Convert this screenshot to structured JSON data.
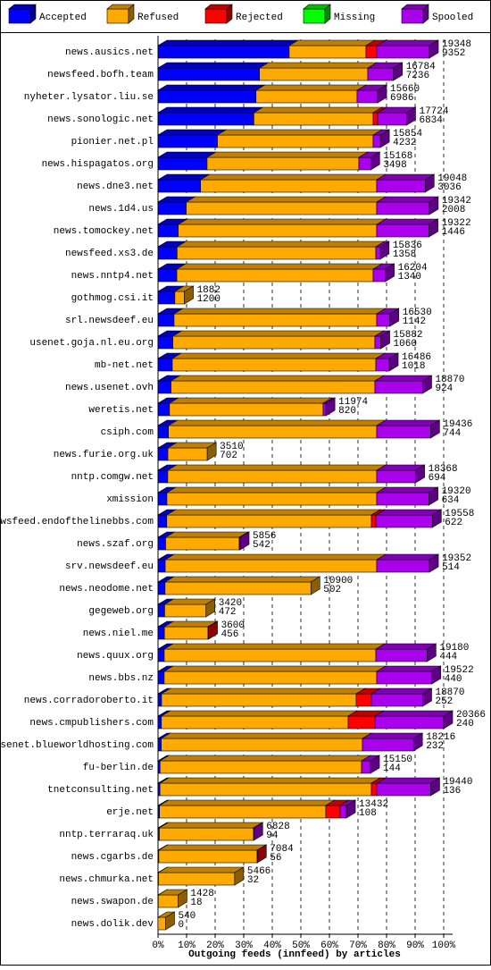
{
  "chart_data": {
    "type": "stacked-bar-3d",
    "orientation": "horizontal",
    "xlabel": "Outgoing feeds (innfeed) by articles",
    "categories": [
      "news.ausics.net",
      "newsfeed.bofh.team",
      "nyheter.lysator.liu.se",
      "news.sonologic.net",
      "pionier.net.pl",
      "news.hispagatos.org",
      "news.dne3.net",
      "news.1d4.us",
      "news.tomockey.net",
      "newsfeed.xs3.de",
      "news.nntp4.net",
      "gothmog.csi.it",
      "srl.newsdeef.eu",
      "usenet.goja.nl.eu.org",
      "mb-net.net",
      "news.usenet.ovh",
      "weretis.net",
      "csiph.com",
      "news.furie.org.uk",
      "nntp.comgw.net",
      "xmission",
      "newsfeed.endofthelinebbs.com",
      "news.szaf.org",
      "srv.newsdeef.eu",
      "news.neodome.net",
      "gegeweb.org",
      "news.niel.me",
      "news.quux.org",
      "news.bbs.nz",
      "news.corradoroberto.it",
      "news.cmpublishers.com",
      "usenet.blueworldhosting.com",
      "fu-berlin.de",
      "tnetconsulting.net",
      "erje.net",
      "nntp.terraraq.uk",
      "news.cgarbs.de",
      "news.chmurka.net",
      "news.swapon.de",
      "news.dolik.dev"
    ],
    "totals": [
      19348,
      16784,
      15660,
      17724,
      15854,
      15168,
      19048,
      19342,
      19322,
      15836,
      16204,
      1882,
      16530,
      15882,
      16486,
      18870,
      11974,
      19436,
      3510,
      18368,
      19320,
      19558,
      5856,
      19352,
      10900,
      3420,
      3600,
      19180,
      19522,
      18870,
      20366,
      18216,
      15150,
      19440,
      13432,
      6828,
      7084,
      5466,
      1428,
      540
    ],
    "series": [
      {
        "name": "Accepted",
        "color": "#0000ff",
        "values": [
          9352,
          7236,
          6986,
          6834,
          4232,
          3498,
          3036,
          2008,
          1446,
          1358,
          1340,
          1200,
          1142,
          1060,
          1018,
          924,
          820,
          744,
          702,
          694,
          634,
          622,
          542,
          514,
          502,
          472,
          456,
          444,
          440,
          252,
          240,
          232,
          144,
          136,
          108,
          94,
          56,
          32,
          18,
          0
        ]
      },
      {
        "name": "Refused",
        "color": "#ffaa00",
        "values": [
          5477,
          7720,
          7206,
          8504,
          11106,
          10822,
          12557,
          13585,
          14147,
          14171,
          13998,
          682,
          14451,
          14405,
          14511,
          14541,
          10954,
          14849,
          2808,
          14899,
          14959,
          14589,
          5249,
          15079,
          10398,
          2948,
          3108,
          15085,
          15153,
          13877,
          13316,
          14342,
          14367,
          15075,
          11857,
          6715,
          7008,
          5434,
          1410,
          540
        ]
      },
      {
        "name": "Rejected",
        "color": "#ff0000",
        "values": [
          764,
          0,
          0,
          318,
          0,
          0,
          0,
          0,
          0,
          0,
          0,
          0,
          0,
          0,
          0,
          0,
          0,
          0,
          0,
          0,
          0,
          318,
          0,
          0,
          0,
          0,
          36,
          0,
          0,
          1082,
          1909,
          0,
          0,
          382,
          1018,
          0,
          20,
          0,
          0,
          0
        ]
      },
      {
        "name": "Missing",
        "color": "#00ff00",
        "values": [
          0,
          0,
          0,
          0,
          0,
          0,
          0,
          0,
          0,
          0,
          0,
          0,
          0,
          0,
          0,
          0,
          0,
          0,
          0,
          0,
          0,
          0,
          0,
          0,
          0,
          0,
          0,
          0,
          0,
          0,
          0,
          0,
          0,
          0,
          0,
          0,
          0,
          0,
          0,
          0
        ]
      },
      {
        "name": "Spooled",
        "color": "#aa00ee",
        "values": [
          3755,
          1828,
          1468,
          2068,
          516,
          848,
          3455,
          3749,
          3729,
          307,
          866,
          0,
          937,
          417,
          957,
          3405,
          200,
          3843,
          0,
          2775,
          3727,
          4029,
          65,
          3759,
          0,
          0,
          0,
          3651,
          3929,
          3659,
          4901,
          3642,
          639,
          3847,
          449,
          19,
          0,
          0,
          0,
          0
        ]
      }
    ],
    "xlim": [
      0,
      20366
    ],
    "xticks": [
      {
        "value": 0,
        "label": "0%"
      },
      {
        "value": 2036.6,
        "label": "10%"
      },
      {
        "value": 4073.2,
        "label": "20%"
      },
      {
        "value": 6109.8,
        "label": "30%"
      },
      {
        "value": 8146.4,
        "label": "40%"
      },
      {
        "value": 10183,
        "label": "50%"
      },
      {
        "value": 12219.6,
        "label": "60%"
      },
      {
        "value": 14256.2,
        "label": "70%"
      },
      {
        "value": 16292.8,
        "label": "80%"
      },
      {
        "value": 18329.4,
        "label": "90%"
      },
      {
        "value": 20366,
        "label": "100%"
      }
    ],
    "grid": true,
    "legend": "top"
  }
}
